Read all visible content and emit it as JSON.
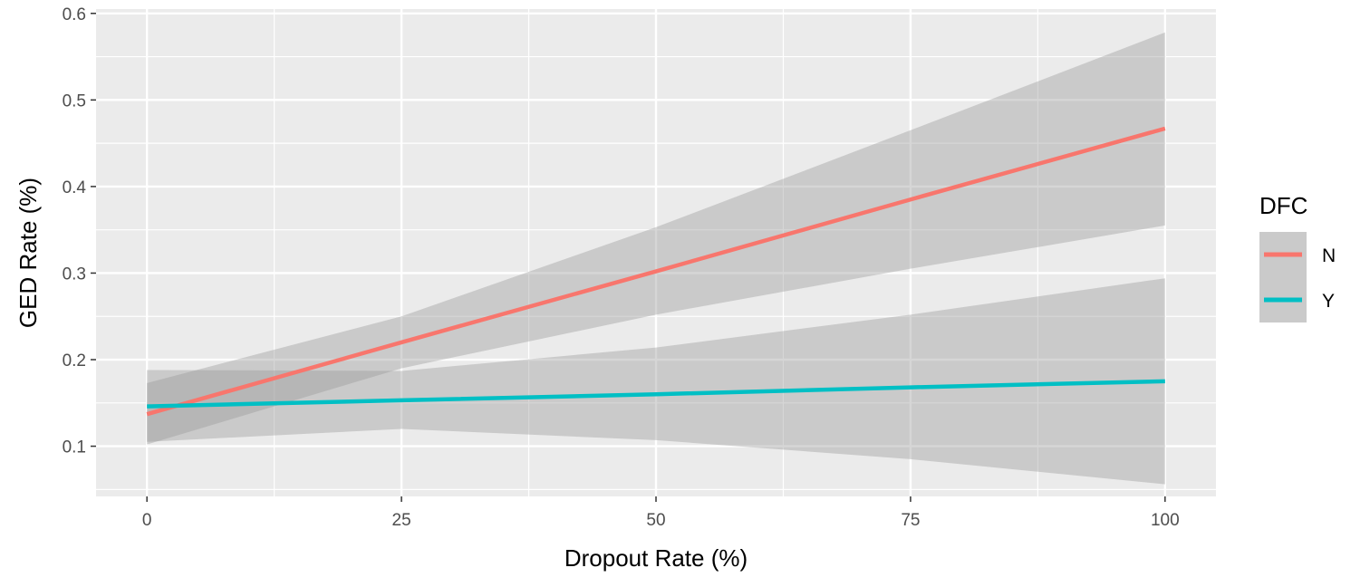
{
  "chart_data": {
    "type": "line",
    "xlabel": "Dropout Rate (%)",
    "ylabel": "GED Rate (%)",
    "xlim": [
      -5,
      105
    ],
    "ylim": [
      0.042,
      0.605
    ],
    "x_ticks": [
      0,
      25,
      50,
      75,
      100
    ],
    "y_ticks": [
      0.1,
      0.2,
      0.3,
      0.4,
      0.5,
      0.6
    ],
    "x_tick_labels": [
      "0",
      "25",
      "50",
      "75",
      "100"
    ],
    "y_tick_labels": [
      "0.1",
      "0.2",
      "0.3",
      "0.4",
      "0.5",
      "0.6"
    ],
    "grid": true,
    "background": "#EBEBEB",
    "legend": {
      "title": "DFC",
      "placement": "right"
    },
    "series": [
      {
        "name": "N",
        "color": "#F8766D",
        "x": [
          0,
          25,
          50,
          75,
          100
        ],
        "y": [
          0.137,
          0.22,
          0.302,
          0.385,
          0.467
        ],
        "band": [
          [
            0.102,
            0.173
          ],
          [
            0.19,
            0.25
          ],
          [
            0.252,
            0.353
          ],
          [
            0.305,
            0.465
          ],
          [
            0.355,
            0.578
          ]
        ]
      },
      {
        "name": "Y",
        "color": "#00BFC4",
        "x": [
          0,
          25,
          50,
          75,
          100
        ],
        "y": [
          0.146,
          0.153,
          0.16,
          0.168,
          0.175
        ],
        "band": [
          [
            0.105,
            0.188
          ],
          [
            0.12,
            0.187
          ],
          [
            0.107,
            0.214
          ],
          [
            0.085,
            0.252
          ],
          [
            0.056,
            0.294
          ]
        ]
      }
    ]
  }
}
